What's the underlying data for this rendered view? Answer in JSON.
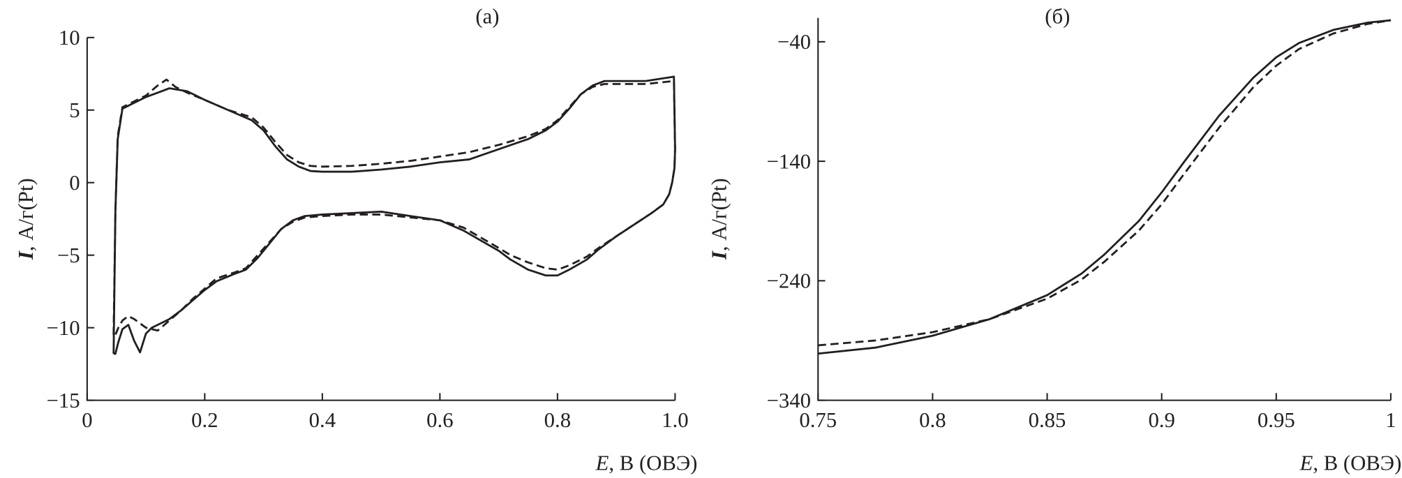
{
  "chart_data": [
    {
      "type": "line",
      "title": "(a)",
      "xlabel_italic": "E",
      "xlabel_rest": ", В (ОВЭ)",
      "ylabel_italic": "I",
      "ylabel_rest": ", А/г(Pt)",
      "xlim": [
        0,
        1.0
      ],
      "ylim": [
        -15,
        10
      ],
      "xticks": [
        0,
        0.2,
        0.4,
        0.6,
        0.8,
        1.0
      ],
      "xtick_labels": [
        "0",
        "0.2",
        "0.4",
        "0.6",
        "0.8",
        "1.0"
      ],
      "yticks": [
        10,
        5,
        0,
        -5,
        -10,
        -15
      ],
      "ytick_labels": [
        "10",
        "5",
        "0",
        "−5",
        "−10",
        "−15"
      ],
      "grid": false,
      "series": [
        {
          "name": "solid",
          "style": "solid",
          "x": [
            0.045,
            0.048,
            0.052,
            0.06,
            0.08,
            0.1,
            0.12,
            0.14,
            0.17,
            0.2,
            0.24,
            0.28,
            0.3,
            0.32,
            0.34,
            0.36,
            0.38,
            0.4,
            0.45,
            0.5,
            0.55,
            0.6,
            0.65,
            0.7,
            0.75,
            0.78,
            0.8,
            0.82,
            0.84,
            0.86,
            0.88,
            0.9,
            0.95,
            0.998,
            1.0,
            0.999,
            0.995,
            0.99,
            0.98,
            0.96,
            0.93,
            0.9,
            0.87,
            0.85,
            0.82,
            0.8,
            0.78,
            0.75,
            0.72,
            0.7,
            0.67,
            0.64,
            0.6,
            0.55,
            0.5,
            0.45,
            0.4,
            0.37,
            0.35,
            0.33,
            0.31,
            0.29,
            0.27,
            0.25,
            0.22,
            0.2,
            0.18,
            0.16,
            0.14,
            0.12,
            0.11,
            0.1,
            0.09,
            0.08,
            0.07,
            0.06,
            0.053,
            0.048,
            0.045
          ],
          "y": [
            -11.8,
            -2,
            3,
            5.1,
            5.5,
            5.9,
            6.2,
            6.5,
            6.3,
            5.7,
            5.0,
            4.3,
            3.6,
            2.5,
            1.6,
            1.1,
            0.8,
            0.75,
            0.75,
            0.9,
            1.1,
            1.4,
            1.6,
            2.3,
            3.0,
            3.6,
            4.2,
            5.1,
            6.1,
            6.7,
            7.0,
            7.0,
            7.0,
            7.3,
            2.3,
            1.0,
            0.0,
            -0.8,
            -1.5,
            -2.1,
            -2.9,
            -3.7,
            -4.6,
            -5.3,
            -6.0,
            -6.4,
            -6.4,
            -6.0,
            -5.3,
            -4.7,
            -4.0,
            -3.3,
            -2.6,
            -2.3,
            -2.0,
            -2.1,
            -2.2,
            -2.3,
            -2.6,
            -3.2,
            -4.2,
            -5.2,
            -6.0,
            -6.3,
            -6.8,
            -7.4,
            -8.1,
            -8.8,
            -9.4,
            -9.8,
            -10.0,
            -10.4,
            -11.7,
            -10.9,
            -9.8,
            -10.1,
            -11.0,
            -11.8,
            -11.8
          ]
        },
        {
          "name": "dashed",
          "style": "dashed",
          "x": [
            0.045,
            0.048,
            0.052,
            0.06,
            0.08,
            0.1,
            0.12,
            0.135,
            0.15,
            0.17,
            0.2,
            0.24,
            0.28,
            0.3,
            0.32,
            0.34,
            0.36,
            0.38,
            0.4,
            0.45,
            0.5,
            0.55,
            0.6,
            0.65,
            0.7,
            0.75,
            0.78,
            0.8,
            0.82,
            0.84,
            0.86,
            0.88,
            0.9,
            0.95,
            0.998,
            1.0,
            0.999,
            0.995,
            0.99,
            0.98,
            0.96,
            0.93,
            0.9,
            0.87,
            0.85,
            0.82,
            0.8,
            0.78,
            0.75,
            0.72,
            0.7,
            0.67,
            0.64,
            0.6,
            0.55,
            0.5,
            0.45,
            0.4,
            0.37,
            0.35,
            0.33,
            0.31,
            0.29,
            0.27,
            0.25,
            0.22,
            0.2,
            0.18,
            0.16,
            0.14,
            0.12,
            0.1,
            0.08,
            0.07,
            0.06,
            0.053,
            0.048
          ],
          "y": [
            -10.5,
            -2,
            3.2,
            5.2,
            5.6,
            6.0,
            6.7,
            7.1,
            6.6,
            6.2,
            5.7,
            5.0,
            4.5,
            3.8,
            2.8,
            1.9,
            1.4,
            1.15,
            1.1,
            1.15,
            1.3,
            1.5,
            1.8,
            2.1,
            2.6,
            3.2,
            3.7,
            4.3,
            5.2,
            6.1,
            6.6,
            6.8,
            6.8,
            6.8,
            7.0,
            2.3,
            1.0,
            0.0,
            -0.8,
            -1.5,
            -2.1,
            -2.9,
            -3.7,
            -4.5,
            -5.1,
            -5.7,
            -6.0,
            -5.9,
            -5.5,
            -5.0,
            -4.5,
            -3.8,
            -3.1,
            -2.6,
            -2.4,
            -2.2,
            -2.2,
            -2.3,
            -2.4,
            -2.7,
            -3.2,
            -4.1,
            -5.0,
            -5.9,
            -6.2,
            -6.6,
            -7.3,
            -8.0,
            -8.8,
            -9.5,
            -10.2,
            -10.0,
            -9.4,
            -9.2,
            -9.5,
            -10.0,
            -10.5
          ]
        }
      ]
    },
    {
      "type": "line",
      "title": "(б)",
      "xlabel_italic": "E",
      "xlabel_rest": ", В (ОВЭ)",
      "ylabel_italic": "I",
      "ylabel_rest": ", А/г(Pt)",
      "xlim": [
        0.75,
        1.0
      ],
      "ylim": [
        -340,
        -20
      ],
      "xticks": [
        0.75,
        0.8,
        0.85,
        0.9,
        0.95,
        1.0
      ],
      "xtick_labels": [
        "0.75",
        "0.8",
        "0.85",
        "0.9",
        "0.95",
        "1"
      ],
      "yticks": [
        -40,
        -140,
        -240,
        -340
      ],
      "ytick_labels": [
        "−40",
        "−140",
        "−240",
        "−340"
      ],
      "grid": false,
      "series": [
        {
          "name": "solid",
          "style": "solid",
          "x": [
            0.75,
            0.775,
            0.8,
            0.825,
            0.85,
            0.865,
            0.875,
            0.89,
            0.9,
            0.91,
            0.925,
            0.94,
            0.95,
            0.96,
            0.975,
            0.99,
            1.0
          ],
          "y": [
            -301,
            -296,
            -286,
            -272,
            -252,
            -234,
            -218,
            -190,
            -166,
            -140,
            -102,
            -70,
            -53,
            -41,
            -30,
            -24,
            -22
          ]
        },
        {
          "name": "dashed",
          "style": "dashed",
          "x": [
            0.75,
            0.775,
            0.8,
            0.825,
            0.85,
            0.865,
            0.875,
            0.89,
            0.9,
            0.91,
            0.925,
            0.94,
            0.95,
            0.96,
            0.975,
            0.99,
            1.0
          ],
          "y": [
            -294,
            -290,
            -283,
            -272,
            -255,
            -239,
            -224,
            -198,
            -176,
            -150,
            -112,
            -78,
            -60,
            -46,
            -33,
            -25,
            -22
          ]
        }
      ]
    }
  ]
}
